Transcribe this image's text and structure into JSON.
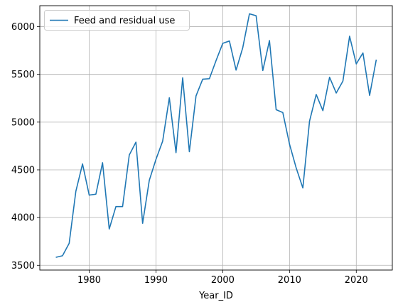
{
  "chart_data": {
    "type": "line",
    "title": "",
    "xlabel": "Year_ID",
    "ylabel": "",
    "xlim": [
      1972.6,
      2025.4
    ],
    "ylim": [
      3450,
      6220
    ],
    "xticks": [
      1980,
      1990,
      2000,
      2010,
      2020
    ],
    "yticks": [
      3500,
      4000,
      4500,
      5000,
      5500,
      6000
    ],
    "grid": true,
    "legend_position": "top-left",
    "series": [
      {
        "name": "Feed and residual use",
        "color": "#1f77b4",
        "x": [
          1975,
          1976,
          1977,
          1978,
          1979,
          1980,
          1981,
          1982,
          1983,
          1984,
          1985,
          1986,
          1987,
          1988,
          1989,
          1990,
          1991,
          1992,
          1993,
          1994,
          1995,
          1996,
          1997,
          1998,
          1999,
          2000,
          2001,
          2002,
          2003,
          2004,
          2005,
          2006,
          2007,
          2008,
          2009,
          2010,
          2011,
          2012,
          2013,
          2014,
          2015,
          2016,
          2017,
          2018,
          2019,
          2020,
          2021,
          2022,
          2023
        ],
        "y": [
          3583,
          3600,
          3730,
          4275,
          4562,
          4235,
          4245,
          4575,
          3880,
          4115,
          4115,
          4655,
          4790,
          3940,
          4390,
          4610,
          4800,
          5255,
          4680,
          5465,
          4690,
          5275,
          5450,
          5455,
          5645,
          5825,
          5850,
          5545,
          5780,
          6135,
          6115,
          5540,
          5855,
          5130,
          5100,
          4770,
          4520,
          4310,
          5010,
          5290,
          5120,
          5470,
          5305,
          5430,
          5900,
          5610,
          5725,
          5280,
          5655
        ]
      }
    ]
  }
}
